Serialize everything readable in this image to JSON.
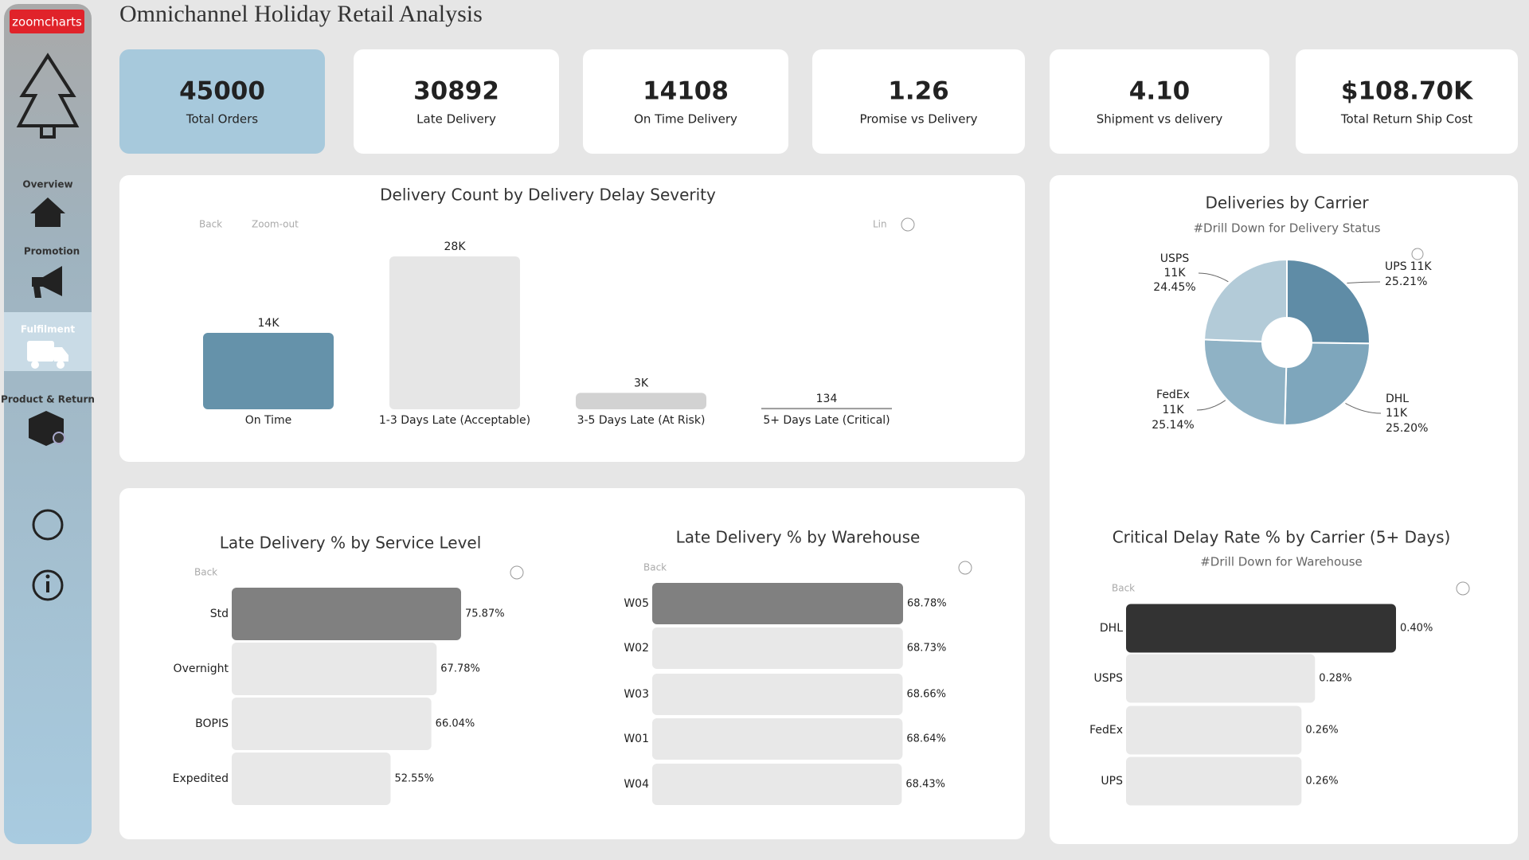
{
  "header": {
    "logo": "zoomcharts",
    "title": "Omnichannel Holiday Retail Analysis"
  },
  "nav": [
    "Overview",
    "Promotion",
    "Fulfilment",
    "Product & Return"
  ],
  "kpis": [
    {
      "value": "45000",
      "label": "Total Orders"
    },
    {
      "value": "30892",
      "label": "Late Delivery"
    },
    {
      "value": "14108",
      "label": "On Time Delivery"
    },
    {
      "value": "1.26",
      "label": "Promise vs Delivery"
    },
    {
      "value": "4.10",
      "label": "Shipment vs delivery"
    },
    {
      "value": "$108.70K",
      "label": "Total Return Ship Cost"
    }
  ],
  "toolbar": {
    "back": "Back",
    "zoom_out": "Zoom-out",
    "scale": "Lin"
  },
  "chart_data": [
    {
      "type": "bar",
      "title": "Delivery Count by Delivery Delay Severity",
      "categories": [
        "On Time",
        "1-3 Days Late (Acceptable)",
        "3-5 Days Late (At Risk)",
        "5+ Days Late (Critical)"
      ],
      "values": [
        14000,
        28000,
        3000,
        134
      ],
      "value_labels": [
        "14K",
        "28K",
        "3K",
        "134"
      ],
      "colors": [
        "#6592aa",
        "#e6e6e6",
        "#d2d2d2",
        "#9a9a9a"
      ]
    },
    {
      "type": "pie",
      "title": "Deliveries by Carrier",
      "subtitle": "#Drill Down for Delivery Status",
      "categories": [
        "UPS",
        "DHL",
        "FedEx",
        "USPS"
      ],
      "values": [
        25.21,
        25.2,
        25.14,
        24.45
      ],
      "value_labels": [
        "25.21%",
        "25.20%",
        "25.14%",
        "24.45%"
      ],
      "count_values": [
        11000,
        11000,
        11000,
        11000
      ],
      "count_labels": [
        "11K",
        "11K",
        "11K",
        "11K"
      ],
      "colors": [
        "#5f8ca6",
        "#7ea6bc",
        "#8fb2c5",
        "#b3cbd8"
      ]
    },
    {
      "type": "hbar",
      "title": "Late Delivery % by Service Level",
      "categories": [
        "Std",
        "Overnight",
        "BOPIS",
        "Expedited"
      ],
      "values": [
        75.87,
        67.78,
        66.04,
        52.55
      ],
      "value_labels": [
        "75.87%",
        "67.78%",
        "66.04%",
        "52.55%"
      ],
      "colors": [
        "#808080",
        "#e8e8e8",
        "#e8e8e8",
        "#e8e8e8"
      ]
    },
    {
      "type": "hbar",
      "title": "Late Delivery % by Warehouse",
      "categories": [
        "W05",
        "W02",
        "W03",
        "W01",
        "W04"
      ],
      "values": [
        68.78,
        68.73,
        68.66,
        68.64,
        68.43
      ],
      "value_labels": [
        "68.78%",
        "68.73%",
        "68.66%",
        "68.64%",
        "68.43%"
      ],
      "colors": [
        "#808080",
        "#e8e8e8",
        "#e8e8e8",
        "#e8e8e8",
        "#e8e8e8"
      ]
    },
    {
      "type": "hbar",
      "title": "Critical Delay Rate % by Carrier (5+ Days)",
      "subtitle": "#Drill Down for Warehouse",
      "categories": [
        "DHL",
        "USPS",
        "FedEx",
        "UPS"
      ],
      "values": [
        0.4,
        0.28,
        0.26,
        0.26
      ],
      "value_labels": [
        "0.40%",
        "0.28%",
        "0.26%",
        "0.26%"
      ],
      "colors": [
        "#333333",
        "#e8e8e8",
        "#e8e8e8",
        "#e8e8e8"
      ]
    }
  ]
}
